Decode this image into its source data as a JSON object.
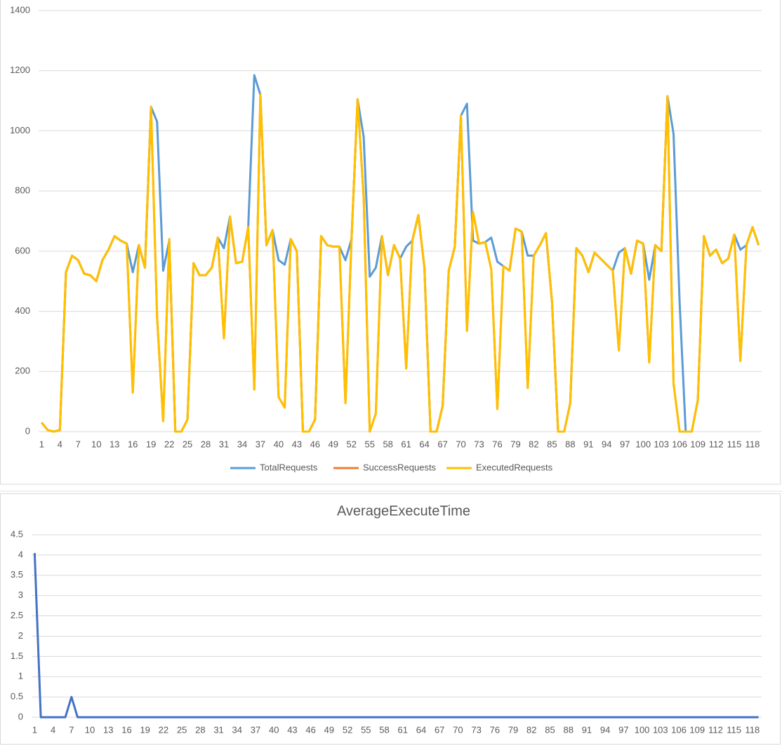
{
  "chart_data": [
    {
      "type": "line",
      "categories": [
        1,
        null,
        null,
        4,
        null,
        null,
        7,
        null,
        null,
        10,
        null,
        null,
        13,
        null,
        null,
        16,
        null,
        null,
        19,
        null,
        null,
        22,
        null,
        null,
        25,
        null,
        null,
        28,
        null,
        null,
        31,
        null,
        null,
        34,
        null,
        null,
        37,
        null,
        null,
        40,
        null,
        null,
        43,
        null,
        null,
        46,
        null,
        null,
        49,
        null,
        null,
        52,
        null,
        null,
        55,
        null,
        null,
        58,
        null,
        null,
        61,
        null,
        null,
        64,
        null,
        null,
        67,
        null,
        null,
        70,
        null,
        null,
        73,
        null,
        null,
        76,
        null,
        null,
        79,
        null,
        null,
        82,
        null,
        null,
        85,
        null,
        null,
        88,
        null,
        null,
        91,
        null,
        null,
        94,
        null,
        null,
        97,
        null,
        null,
        100,
        null,
        null,
        103,
        null,
        null,
        106,
        null,
        null,
        109,
        null,
        null,
        112,
        null,
        null,
        115,
        null,
        null,
        118,
        null
      ],
      "series": [
        {
          "name": "TotalRequests",
          "color": "#5b9bd5",
          "values": [
            30,
            5,
            0,
            5,
            530,
            585,
            570,
            525,
            520,
            500,
            570,
            605,
            650,
            635,
            625,
            530,
            620,
            545,
            1080,
            1030,
            535,
            635,
            0,
            0,
            40,
            560,
            520,
            520,
            545,
            645,
            610,
            715,
            560,
            565,
            680,
            1185,
            1120,
            620,
            670,
            570,
            555,
            640,
            600,
            0,
            0,
            40,
            650,
            620,
            615,
            615,
            570,
            640,
            1105,
            980,
            515,
            545,
            650,
            520,
            620,
            575,
            615,
            635,
            720,
            545,
            0,
            0,
            85,
            535,
            615,
            1050,
            1090,
            635,
            625,
            630,
            645,
            565,
            550,
            535,
            675,
            665,
            585,
            585,
            620,
            660,
            430,
            0,
            0,
            95,
            610,
            585,
            530,
            595,
            575,
            555,
            535,
            595,
            610,
            525,
            635,
            625,
            505,
            620,
            600,
            1115,
            990,
            430,
            0,
            0,
            105,
            650,
            585,
            605,
            560,
            575,
            655,
            605,
            620,
            680,
            620
          ]
        },
        {
          "name": "SuccessRequests",
          "color": "#ed7d31",
          "values": [
            30,
            5,
            0,
            5,
            530,
            585,
            570,
            525,
            520,
            500,
            570,
            605,
            650,
            635,
            625,
            130,
            620,
            545,
            1080,
            380,
            35,
            640,
            0,
            0,
            40,
            560,
            520,
            520,
            545,
            645,
            310,
            715,
            560,
            565,
            680,
            140,
            1120,
            620,
            670,
            115,
            80,
            640,
            600,
            0,
            0,
            40,
            650,
            620,
            615,
            615,
            95,
            640,
            1105,
            780,
            0,
            60,
            650,
            520,
            620,
            575,
            210,
            635,
            720,
            545,
            0,
            0,
            85,
            535,
            615,
            1050,
            335,
            730,
            625,
            630,
            540,
            75,
            550,
            535,
            675,
            665,
            145,
            585,
            620,
            660,
            430,
            0,
            0,
            95,
            610,
            585,
            530,
            595,
            575,
            555,
            535,
            270,
            610,
            525,
            635,
            625,
            230,
            620,
            600,
            1115,
            160,
            0,
            0,
            0,
            105,
            650,
            585,
            605,
            560,
            575,
            655,
            235,
            620,
            680,
            620
          ]
        },
        {
          "name": "ExecutedRequests",
          "color": "#ffc000",
          "values": [
            30,
            5,
            0,
            5,
            530,
            585,
            570,
            525,
            520,
            500,
            570,
            605,
            650,
            635,
            625,
            130,
            620,
            545,
            1080,
            380,
            35,
            640,
            0,
            0,
            40,
            560,
            520,
            520,
            545,
            645,
            310,
            715,
            560,
            565,
            680,
            140,
            1120,
            620,
            670,
            115,
            80,
            640,
            600,
            0,
            0,
            40,
            650,
            620,
            615,
            615,
            95,
            640,
            1105,
            780,
            0,
            60,
            650,
            520,
            620,
            575,
            210,
            635,
            720,
            545,
            0,
            0,
            85,
            535,
            615,
            1050,
            335,
            730,
            625,
            630,
            540,
            75,
            550,
            535,
            675,
            665,
            145,
            585,
            620,
            660,
            430,
            0,
            0,
            95,
            610,
            585,
            530,
            595,
            575,
            555,
            535,
            270,
            610,
            525,
            635,
            625,
            230,
            620,
            600,
            1115,
            160,
            0,
            0,
            0,
            105,
            650,
            585,
            605,
            560,
            575,
            655,
            235,
            620,
            680,
            620
          ]
        }
      ],
      "ylim": [
        0,
        1400
      ],
      "yticks": [
        0,
        200,
        400,
        600,
        800,
        1000,
        1200,
        1400
      ],
      "grid": true,
      "legend": "bottom"
    },
    {
      "type": "line",
      "title": "AverageExecuteTime",
      "categories": [
        1,
        null,
        null,
        4,
        null,
        null,
        7,
        null,
        null,
        10,
        null,
        null,
        13,
        null,
        null,
        16,
        null,
        null,
        19,
        null,
        null,
        22,
        null,
        null,
        25,
        null,
        null,
        28,
        null,
        null,
        31,
        null,
        null,
        34,
        null,
        null,
        37,
        null,
        null,
        40,
        null,
        null,
        43,
        null,
        null,
        46,
        null,
        null,
        49,
        null,
        null,
        52,
        null,
        null,
        55,
        null,
        null,
        58,
        null,
        null,
        61,
        null,
        null,
        64,
        null,
        null,
        67,
        null,
        null,
        70,
        null,
        null,
        73,
        null,
        null,
        76,
        null,
        null,
        79,
        null,
        null,
        82,
        null,
        null,
        85,
        null,
        null,
        88,
        null,
        null,
        91,
        null,
        null,
        94,
        null,
        null,
        97,
        null,
        null,
        100,
        null,
        null,
        103,
        null,
        null,
        106,
        null,
        null,
        109,
        null,
        null,
        112,
        null,
        null,
        115,
        null,
        null,
        118,
        null
      ],
      "color": "#4472c4",
      "values": [
        4.05,
        0,
        0,
        0,
        0,
        0,
        0.5,
        0,
        0,
        0,
        0,
        0,
        0,
        0,
        0,
        0,
        0,
        0,
        0,
        0,
        0,
        0,
        0,
        0,
        0,
        0,
        0,
        0,
        0,
        0,
        0,
        0,
        0,
        0,
        0,
        0,
        0,
        0,
        0,
        0,
        0,
        0,
        0,
        0,
        0,
        0,
        0,
        0,
        0,
        0,
        0,
        0,
        0,
        0,
        0,
        0,
        0,
        0,
        0,
        0,
        0,
        0,
        0,
        0,
        0,
        0,
        0,
        0,
        0,
        0,
        0,
        0,
        0,
        0,
        0,
        0,
        0,
        0,
        0,
        0,
        0,
        0,
        0,
        0,
        0,
        0,
        0,
        0,
        0,
        0,
        0,
        0,
        0,
        0,
        0,
        0,
        0,
        0,
        0,
        0,
        0,
        0,
        0,
        0,
        0,
        0,
        0,
        0,
        0,
        0,
        0,
        0,
        0,
        0,
        0,
        0,
        0,
        0,
        0
      ],
      "ylim": [
        0,
        4.5
      ],
      "yticks": [
        0,
        0.5,
        1,
        1.5,
        2,
        2.5,
        3,
        3.5,
        4,
        4.5
      ],
      "grid": true
    }
  ]
}
